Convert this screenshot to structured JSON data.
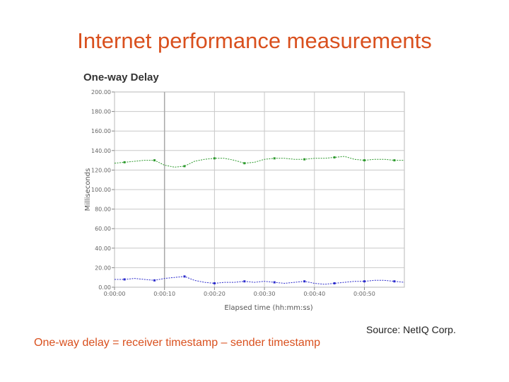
{
  "slide": {
    "title": "Internet performance measurements",
    "caption": "One-way delay = receiver timestamp – sender timestamp",
    "source": "Source: NetIQ Corp."
  },
  "chart_data": {
    "type": "line",
    "title": "One-way Delay",
    "xlabel": "Elapsed time (hh:mm:ss)",
    "ylabel": "Milliseconds",
    "ylim": [
      0,
      200
    ],
    "xlim": [
      0,
      58
    ],
    "x_unit": "seconds",
    "yticks": [
      0,
      20,
      40,
      60,
      80,
      100,
      120,
      140,
      160,
      180,
      200
    ],
    "ytick_labels": [
      "0.00",
      "20.00",
      "40.00",
      "60.00",
      "80.00",
      "100.00",
      "120.00",
      "140.00",
      "160.00",
      "180.00",
      "200.00"
    ],
    "xticks": [
      0,
      10,
      20,
      30,
      40,
      50
    ],
    "xtick_labels": [
      "0:00:00",
      "0:00:10",
      "0:00:20",
      "0:00:30",
      "0:00:40",
      "0:00:50"
    ],
    "grid": true,
    "series": [
      {
        "color": "#2e9a2e",
        "x": [
          0,
          2,
          4,
          6,
          8,
          10,
          12,
          14,
          16,
          18,
          20,
          22,
          24,
          26,
          28,
          30,
          32,
          34,
          36,
          38,
          40,
          42,
          44,
          46,
          48,
          50,
          52,
          54,
          56,
          58
        ],
        "values": [
          127,
          128,
          129,
          130,
          130,
          125,
          123,
          124,
          129,
          131,
          132,
          132,
          130,
          127,
          128,
          131,
          132,
          132,
          131,
          131,
          132,
          132,
          133,
          134,
          131,
          130,
          131,
          131,
          130,
          130
        ]
      },
      {
        "color": "#2c2ccc",
        "x": [
          0,
          2,
          4,
          6,
          8,
          10,
          12,
          14,
          16,
          18,
          20,
          22,
          24,
          26,
          28,
          30,
          32,
          34,
          36,
          38,
          40,
          42,
          44,
          46,
          48,
          50,
          52,
          54,
          56,
          58
        ],
        "values": [
          8,
          8,
          9,
          8,
          7,
          9,
          10,
          11,
          7,
          5,
          4,
          5,
          5,
          6,
          5,
          6,
          5,
          4,
          5,
          6,
          4,
          3,
          4,
          5,
          6,
          6,
          7,
          7,
          6,
          5
        ]
      }
    ]
  }
}
